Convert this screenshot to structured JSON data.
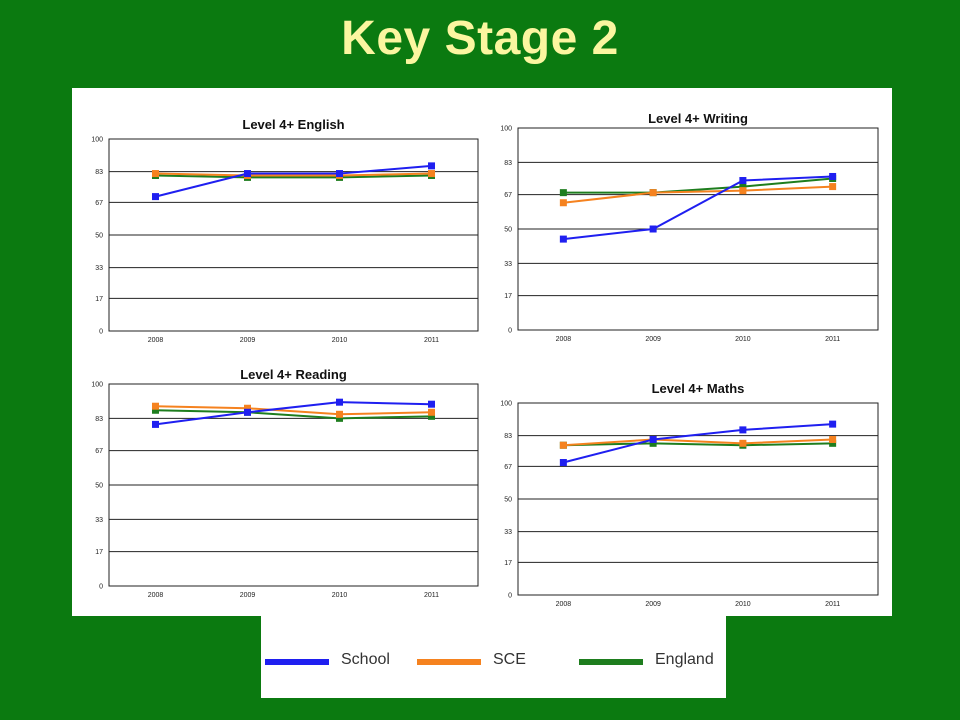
{
  "slide": {
    "title": "Key Stage 2"
  },
  "colors": {
    "School": "#1f1ff0",
    "SCE": "#f5821f",
    "England": "#1e7d1e",
    "background": "#0b7a10"
  },
  "legend": [
    {
      "name": "School",
      "color": "#1f1ff0"
    },
    {
      "name": "SCE",
      "color": "#f5821f"
    },
    {
      "name": "England",
      "color": "#1e7d1e"
    }
  ],
  "chart_data": [
    {
      "type": "line",
      "title": "Level 4+ English",
      "categories": [
        "2008",
        "2009",
        "2010",
        "2011"
      ],
      "yticks": [
        "0",
        "17",
        "33",
        "50",
        "67",
        "83",
        "100"
      ],
      "ylim": [
        0,
        100
      ],
      "grid": true,
      "series": [
        {
          "name": "School",
          "values": [
            70,
            82,
            82,
            86
          ]
        },
        {
          "name": "SCE",
          "values": [
            82,
            81,
            81,
            82
          ]
        },
        {
          "name": "England",
          "values": [
            81,
            80,
            80,
            81
          ]
        }
      ]
    },
    {
      "type": "line",
      "title": "Level 4+ Writing",
      "categories": [
        "2008",
        "2009",
        "2010",
        "2011"
      ],
      "yticks": [
        "0",
        "17",
        "33",
        "50",
        "67",
        "83",
        "100"
      ],
      "ylim": [
        0,
        100
      ],
      "grid": true,
      "series": [
        {
          "name": "School",
          "values": [
            45,
            50,
            74,
            76
          ]
        },
        {
          "name": "SCE",
          "values": [
            63,
            68,
            69,
            71
          ]
        },
        {
          "name": "England",
          "values": [
            68,
            68,
            71,
            75
          ]
        }
      ]
    },
    {
      "type": "line",
      "title": "Level 4+ Reading",
      "categories": [
        "2008",
        "2009",
        "2010",
        "2011"
      ],
      "yticks": [
        "0",
        "17",
        "33",
        "50",
        "67",
        "83",
        "100"
      ],
      "ylim": [
        0,
        100
      ],
      "grid": true,
      "series": [
        {
          "name": "School",
          "values": [
            80,
            86,
            91,
            90
          ]
        },
        {
          "name": "SCE",
          "values": [
            89,
            88,
            85,
            86
          ]
        },
        {
          "name": "England",
          "values": [
            87,
            86,
            83,
            84
          ]
        }
      ]
    },
    {
      "type": "line",
      "title": "Level 4+ Maths",
      "categories": [
        "2008",
        "2009",
        "2010",
        "2011"
      ],
      "yticks": [
        "0",
        "17",
        "33",
        "50",
        "67",
        "83",
        "100"
      ],
      "ylim": [
        0,
        100
      ],
      "grid": true,
      "series": [
        {
          "name": "School",
          "values": [
            69,
            81,
            86,
            89
          ]
        },
        {
          "name": "SCE",
          "values": [
            78,
            81,
            79,
            81
          ]
        },
        {
          "name": "England",
          "values": [
            78,
            79,
            78,
            79
          ]
        }
      ]
    }
  ]
}
